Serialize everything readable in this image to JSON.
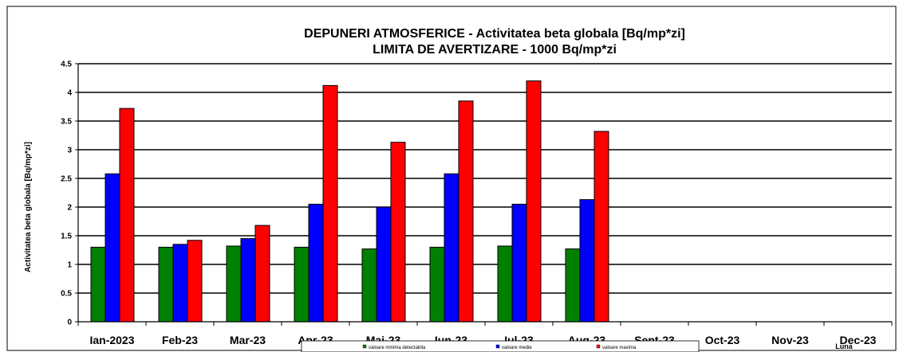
{
  "chart_data": {
    "type": "bar",
    "title": [
      "DEPUNERI   ATMOSFERICE - Activitatea beta globala [Bq/mp*zi]",
      "LIMITA DE AVERTIZARE - 1000 Bq/mp*zi"
    ],
    "xlabel": "Luna",
    "ylabel": "Activitatea  beta  globala [Bq/mp*zi]",
    "ylim": [
      0,
      4.5
    ],
    "yticks": [
      "0",
      "0.5",
      "1",
      "1.5",
      "2",
      "2.5",
      "3",
      "3.5",
      "4",
      "4.5"
    ],
    "grid": "horizontal",
    "legend_position": "bottom",
    "categories": [
      "Ian-2023",
      "Feb-23",
      "Mar-23",
      "Apr-23",
      "Mai-23",
      "Iun-23",
      "Iul-23",
      "Aug-23",
      "Sept-23",
      "Oct-23",
      "Nov-23",
      "Dec-23"
    ],
    "series": [
      {
        "name": "valoare minima detectabila",
        "color": "#008000",
        "values": [
          1.3,
          1.3,
          1.32,
          1.3,
          1.27,
          1.3,
          1.32,
          1.27,
          null,
          null,
          null,
          null
        ]
      },
      {
        "name": "valoare medie",
        "color": "#0000ff",
        "values": [
          2.58,
          1.35,
          1.45,
          2.05,
          2.0,
          2.58,
          2.05,
          2.13,
          null,
          null,
          null,
          null
        ]
      },
      {
        "name": "valoare maxima",
        "color": "#ff0000",
        "values": [
          3.72,
          1.42,
          1.68,
          4.12,
          3.13,
          3.85,
          4.2,
          3.32,
          null,
          null,
          null,
          null
        ]
      }
    ]
  }
}
